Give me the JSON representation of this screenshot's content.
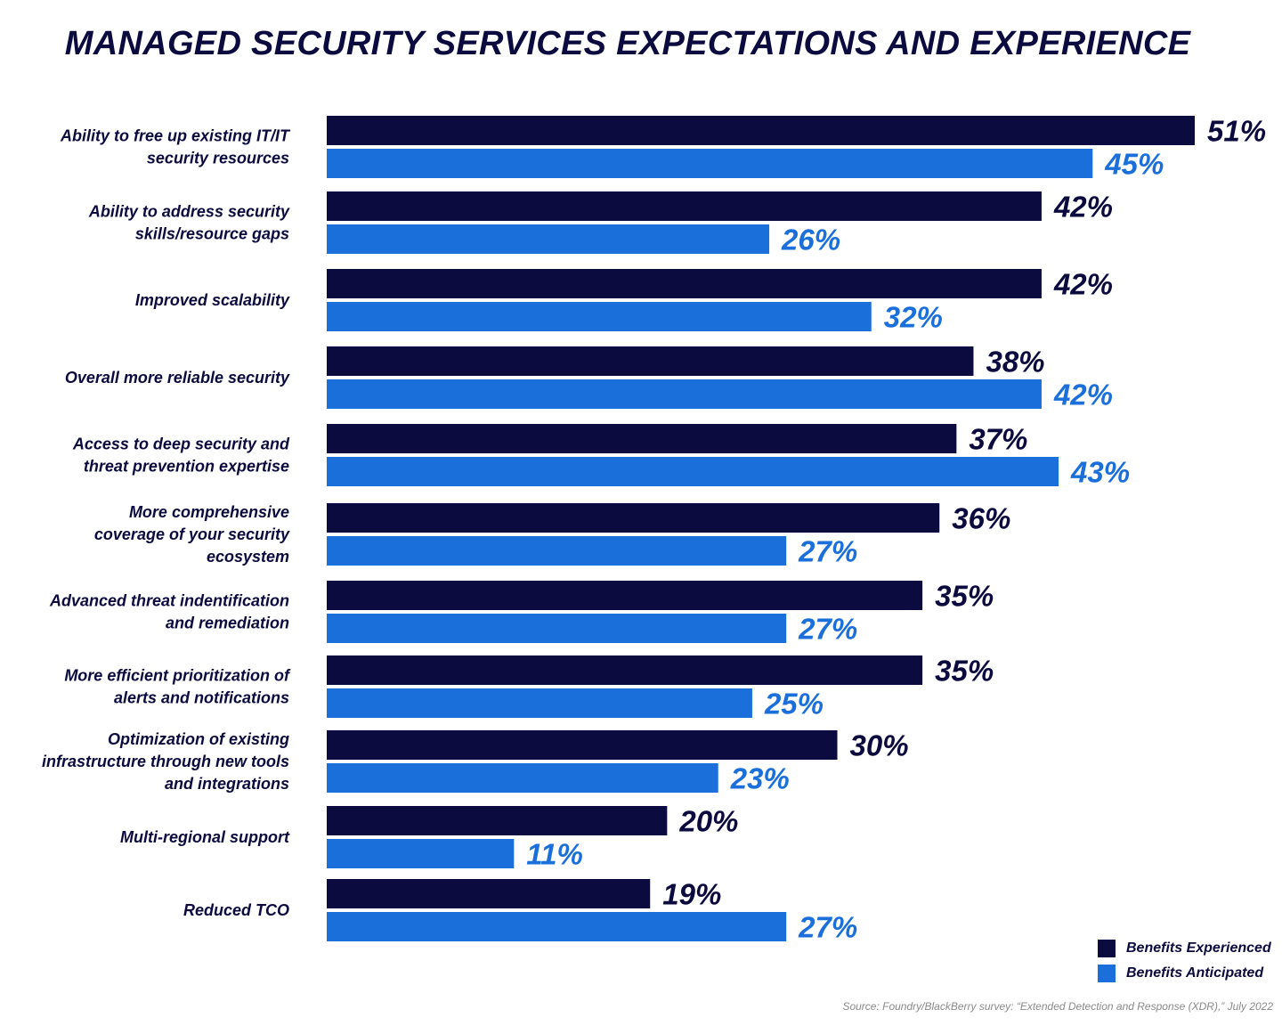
{
  "colors": {
    "experienced": "#0b0b3f",
    "anticipated": "#1a6fdb",
    "text": "#0b0b3f"
  },
  "chart_data": {
    "type": "bar",
    "orientation": "horizontal",
    "title": "MANAGED SECURITY SERVICES EXPECTATIONS AND EXPERIENCE",
    "categories": [
      [
        "Ability to free up existing IT/IT",
        "security resources"
      ],
      [
        "Ability to address security",
        "skills/resource gaps"
      ],
      [
        "Improved scalability"
      ],
      [
        "Overall more reliable security"
      ],
      [
        "Access to deep security and",
        "threat prevention expertise"
      ],
      [
        "More comprehensive",
        "coverage of your security",
        "ecosystem"
      ],
      [
        "Advanced threat indentification",
        "and remediation"
      ],
      [
        "More efficient prioritization of",
        "alerts and notifications"
      ],
      [
        "Optimization of existing",
        "infrastructure through new tools",
        "and integrations"
      ],
      [
        "Multi-regional support"
      ],
      [
        "Reduced TCO"
      ]
    ],
    "series": [
      {
        "name": "Benefits Experienced",
        "values": [
          51,
          42,
          42,
          38,
          37,
          36,
          35,
          35,
          30,
          20,
          19
        ]
      },
      {
        "name": "Benefits Anticipated",
        "values": [
          45,
          26,
          32,
          42,
          43,
          27,
          27,
          25,
          23,
          11,
          27
        ]
      }
    ],
    "value_suffix": "%",
    "xlim": [
      0,
      51
    ],
    "grid": false,
    "legend": "bottom-right"
  },
  "source": "Source: Foundry/BlackBerry survey: “Extended Detection and Response (XDR),” July 2022"
}
